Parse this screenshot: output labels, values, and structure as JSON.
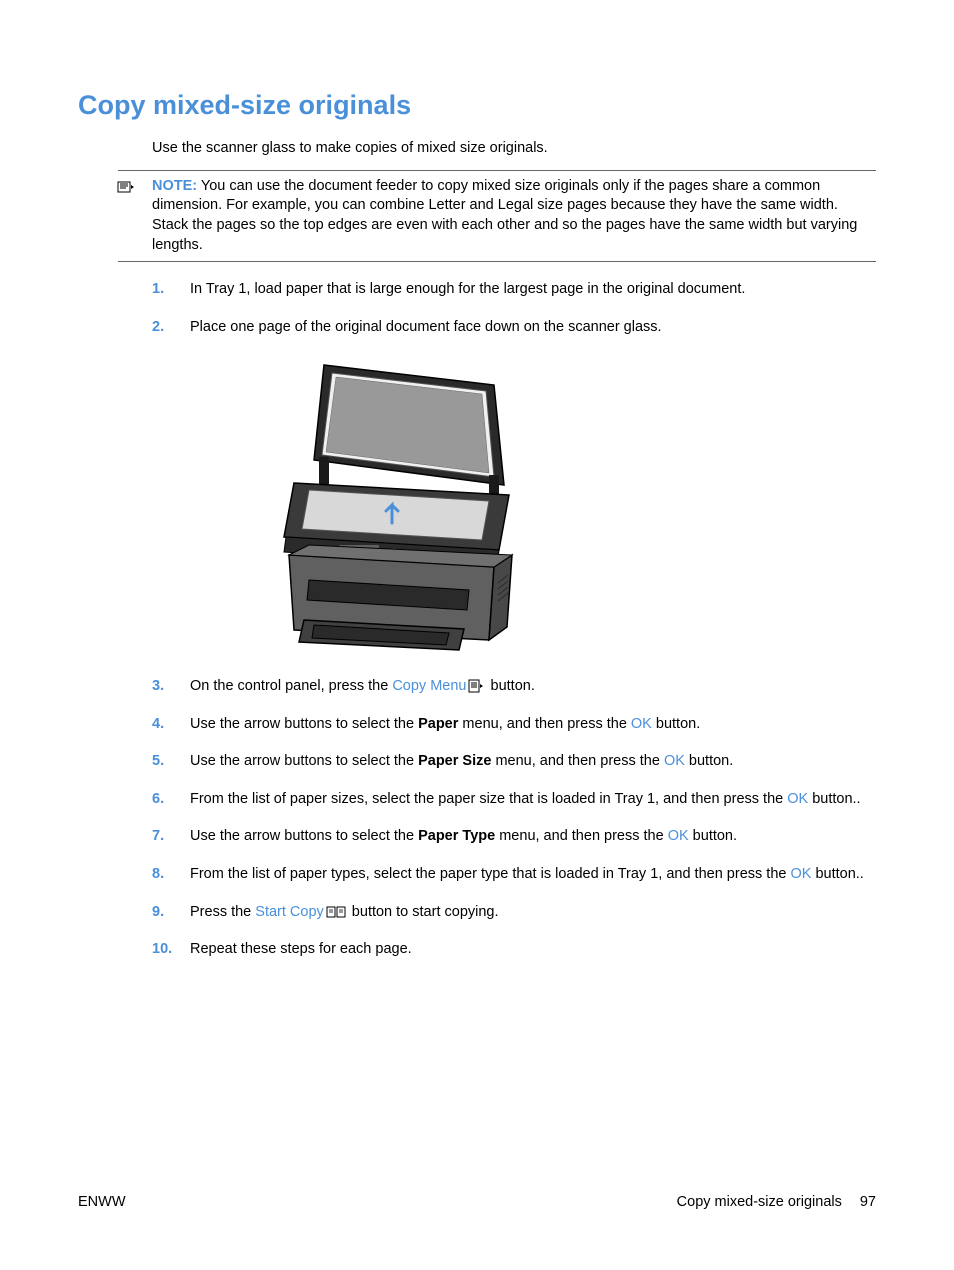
{
  "colors": {
    "accent": "#4A90D9",
    "text": "#000000",
    "border": "#666666",
    "background": "#ffffff"
  },
  "typography": {
    "body_fontsize": 14.5,
    "title_fontsize": 27,
    "font_family": "Arial"
  },
  "title": "Copy mixed-size originals",
  "intro": "Use the scanner glass to make copies of mixed size originals.",
  "note": {
    "label": "NOTE:",
    "text": "You can use the document feeder to copy mixed size originals only if the pages share a common dimension. For example, you can combine Letter and Legal size pages because they have the same width. Stack the pages so the top edges are even with each other and so the pages have the same width but varying lengths."
  },
  "steps": [
    {
      "num": "1.",
      "parts": [
        {
          "t": "In Tray 1, load paper that is large enough for the largest page in the original document."
        }
      ]
    },
    {
      "num": "2.",
      "parts": [
        {
          "t": "Place one page of the original document face down on the scanner glass."
        }
      ]
    },
    {
      "num": "3.",
      "parts": [
        {
          "t": "On the control panel, press the "
        },
        {
          "t": "Copy Menu",
          "hl": true
        },
        {
          "t": " ",
          "icon": "copy-menu"
        },
        {
          "t": " button."
        }
      ]
    },
    {
      "num": "4.",
      "parts": [
        {
          "t": "Use the arrow buttons to select the "
        },
        {
          "t": "Paper",
          "bold": true
        },
        {
          "t": " menu, and then press the "
        },
        {
          "t": "OK",
          "hl": true
        },
        {
          "t": " button."
        }
      ]
    },
    {
      "num": "5.",
      "parts": [
        {
          "t": "Use the arrow buttons to select the "
        },
        {
          "t": "Paper Size",
          "bold": true
        },
        {
          "t": " menu, and then press the "
        },
        {
          "t": "OK",
          "hl": true
        },
        {
          "t": " button."
        }
      ]
    },
    {
      "num": "6.",
      "parts": [
        {
          "t": "From the list of paper sizes, select the paper size that is loaded in Tray 1, and then press the "
        },
        {
          "t": "OK",
          "hl": true
        },
        {
          "t": " button.."
        }
      ]
    },
    {
      "num": "7.",
      "parts": [
        {
          "t": "Use the arrow buttons to select the "
        },
        {
          "t": "Paper Type",
          "bold": true
        },
        {
          "t": " menu, and then press the "
        },
        {
          "t": "OK",
          "hl": true
        },
        {
          "t": " button."
        }
      ]
    },
    {
      "num": "8.",
      "parts": [
        {
          "t": "From the list of paper types, select the paper type that is loaded in Tray 1, and then press the "
        },
        {
          "t": "OK",
          "hl": true
        },
        {
          "t": " button.."
        }
      ]
    },
    {
      "num": "9.",
      "parts": [
        {
          "t": "Press the "
        },
        {
          "t": "Start Copy",
          "hl": true
        },
        {
          "t": " ",
          "icon": "start-copy"
        },
        {
          "t": " button to start copying."
        }
      ]
    },
    {
      "num": "10.",
      "parts": [
        {
          "t": "Repeat these steps for each page."
        }
      ]
    }
  ],
  "image_after_step": 2,
  "footer": {
    "left": "ENWW",
    "right_text": "Copy mixed-size originals",
    "page_number": "97"
  }
}
